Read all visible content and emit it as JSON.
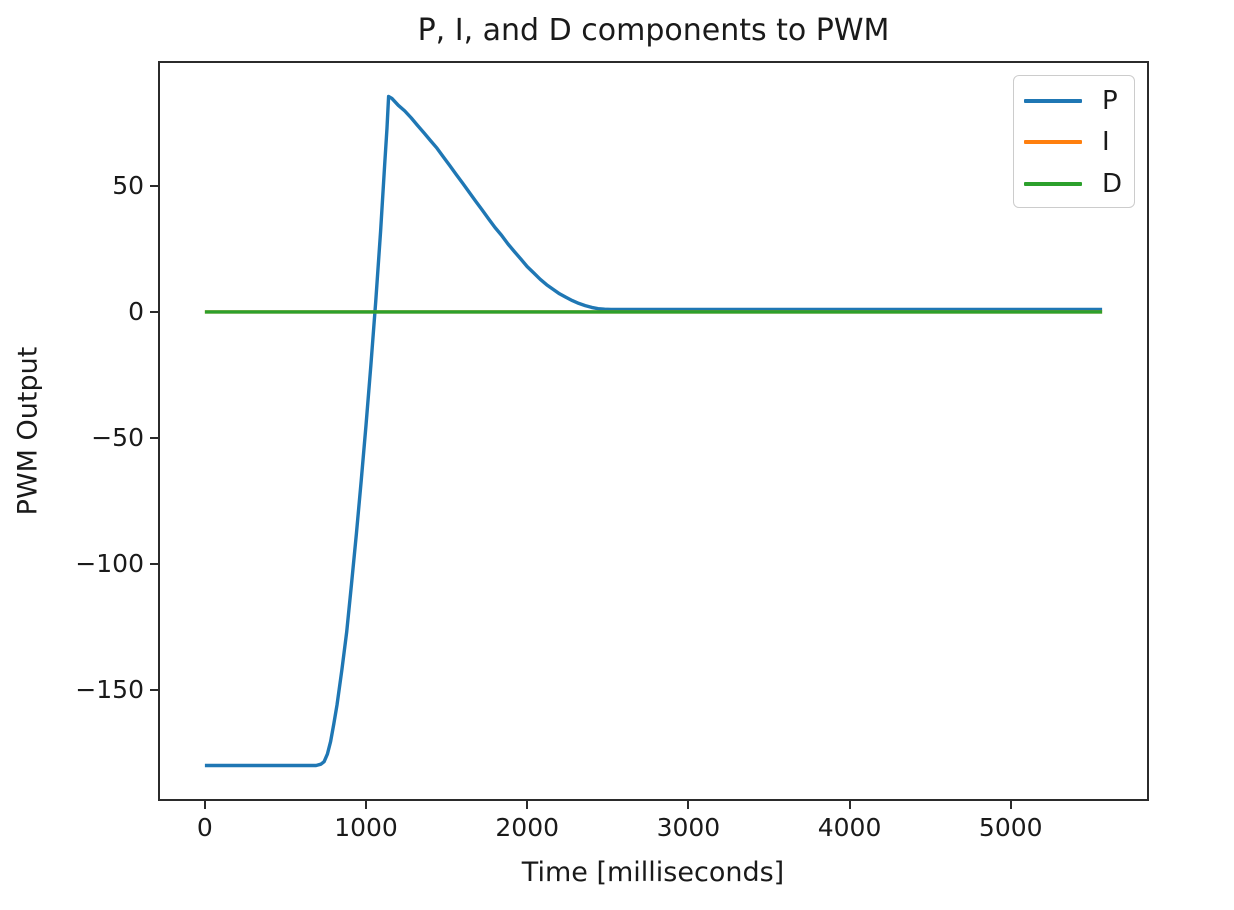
{
  "chart_data": {
    "type": "line",
    "title": "P, I, and D components to PWM",
    "xlabel": "Time [milliseconds]",
    "ylabel": "PWM Output",
    "xlim": [
      -278.4,
      5845.4
    ],
    "ylim": [
      -193.3,
      98.8
    ],
    "grid": false,
    "legend_position": "upper right",
    "line_width": 3.4,
    "spine_color": "#2b2b2b",
    "x_ticks": [
      {
        "value": 0,
        "label": "0"
      },
      {
        "value": 1000,
        "label": "1000"
      },
      {
        "value": 2000,
        "label": "2000"
      },
      {
        "value": 3000,
        "label": "3000"
      },
      {
        "value": 4000,
        "label": "4000"
      },
      {
        "value": 5000,
        "label": "5000"
      }
    ],
    "y_ticks": [
      {
        "value": 50,
        "label": "50"
      },
      {
        "value": 0,
        "label": "0"
      },
      {
        "value": -50,
        "label": "−50"
      },
      {
        "value": -100,
        "label": "−100"
      },
      {
        "value": -150,
        "label": "−150"
      }
    ],
    "series": [
      {
        "name": "P",
        "color": "#1f77b4",
        "points": [
          [
            0,
            -180
          ],
          [
            150,
            -180
          ],
          [
            300,
            -180
          ],
          [
            450,
            -180
          ],
          [
            600,
            -180
          ],
          [
            690,
            -180
          ],
          [
            720,
            -179.5
          ],
          [
            740,
            -178.5
          ],
          [
            760,
            -175.5
          ],
          [
            780,
            -170.5
          ],
          [
            800,
            -163.5
          ],
          [
            820,
            -156
          ],
          [
            850,
            -142
          ],
          [
            880,
            -127
          ],
          [
            910,
            -108
          ],
          [
            940,
            -88
          ],
          [
            970,
            -67
          ],
          [
            1000,
            -45
          ],
          [
            1030,
            -21
          ],
          [
            1060,
            4
          ],
          [
            1090,
            32
          ],
          [
            1115,
            58
          ],
          [
            1130,
            73
          ],
          [
            1140,
            85.5
          ],
          [
            1160,
            84.8
          ],
          [
            1200,
            82
          ],
          [
            1240,
            79.8
          ],
          [
            1280,
            77
          ],
          [
            1320,
            74
          ],
          [
            1360,
            71
          ],
          [
            1400,
            68
          ],
          [
            1440,
            65
          ],
          [
            1480,
            61.5
          ],
          [
            1520,
            58
          ],
          [
            1560,
            54.5
          ],
          [
            1600,
            51
          ],
          [
            1640,
            47.5
          ],
          [
            1680,
            44
          ],
          [
            1720,
            40.5
          ],
          [
            1760,
            37
          ],
          [
            1800,
            33.5
          ],
          [
            1840,
            30.5
          ],
          [
            1880,
            27
          ],
          [
            1920,
            24
          ],
          [
            1960,
            21
          ],
          [
            2000,
            18
          ],
          [
            2040,
            15.5
          ],
          [
            2080,
            13
          ],
          [
            2120,
            10.8
          ],
          [
            2160,
            9
          ],
          [
            2200,
            7.2
          ],
          [
            2240,
            5.8
          ],
          [
            2280,
            4.5
          ],
          [
            2320,
            3.4
          ],
          [
            2360,
            2.5
          ],
          [
            2400,
            1.8
          ],
          [
            2440,
            1.3
          ],
          [
            2480,
            1.1
          ],
          [
            2520,
            1
          ],
          [
            3000,
            1
          ],
          [
            3500,
            1
          ],
          [
            4000,
            1
          ],
          [
            4500,
            1
          ],
          [
            5000,
            1
          ],
          [
            5567,
            1
          ]
        ]
      },
      {
        "name": "I",
        "color": "#ff7f0e",
        "points": [
          [
            0,
            0
          ],
          [
            5567,
            0
          ]
        ]
      },
      {
        "name": "D",
        "color": "#2ca02c",
        "points": [
          [
            0,
            0
          ],
          [
            5567,
            0
          ]
        ]
      }
    ]
  }
}
